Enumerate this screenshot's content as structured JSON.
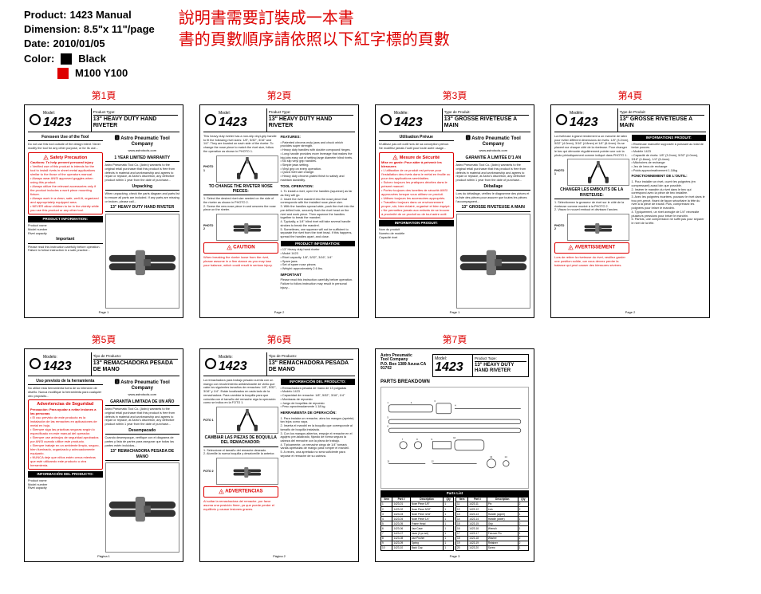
{
  "meta": {
    "product_label": "Product:",
    "product_value": "1423 Manual",
    "dimension_label": "Dimension:",
    "dimension_value": "8.5\"x 11\"/page",
    "date_label": "Date:",
    "date_value": "2010/01/05",
    "color_label": "Color:",
    "color_black": "Black",
    "color_red": "M100  Y100"
  },
  "cn": {
    "line1": "說明書需要訂裝成一本書",
    "line2": "書的頁數順序請依照以下紅字標的頁數"
  },
  "page_labels": [
    "第1頁",
    "第2頁",
    "第3頁",
    "第4頁",
    "第5頁",
    "第6頁",
    "第7頁"
  ],
  "common": {
    "model_label_en": "Model:",
    "model_label_fr": "Modèle:",
    "model_label_es": "Modelo:",
    "model_num": "1423",
    "pt_label_en": "Product Type:",
    "pt_label_fr": "Type de Produit:",
    "pt_label_es": "Tipo de Producto:",
    "ptype_en": "13\" HEAVY DUTY HAND RIVETER",
    "ptype_fr": "13\" GROSSE RIVETEUSE A MAIN",
    "ptype_es": "13\" REMACHADORA PESADA DE MANO",
    "ptype_en2": "13\" HEAVY DUTY\nHAND RIVETER",
    "logo_name": "Astro Pneumatic Tool Company",
    "logo_url": "www.astrotools.com"
  },
  "p1": {
    "foreseen": "Foreseen Use of the Tool",
    "foreseen_body": "Do not use this tool outside of the design intent. Never modify the tool for any other purpose, or for its use...",
    "safety_title": "Safety Precaution",
    "safety_sub": "Cautions: To help prevent personal injury",
    "safety_body": "• Verified use of this product is intends for the tool to install rivets in sheet metal applications similar to the those of the operators manual.\n• Always wear ANSI approved goggles when using this product.\n• Always utilize the relevant accessories only if the product includes a work piece mounting fixture.\n• Always work in a clean, safe, well-lit, organized and appropriately equipped area.\n• NEVER allow children to be in the vicinity while you use this product or any other tool.",
    "info_title": "PRODUCT INFORMATION:",
    "info_body": "Product name\nModel number\nRivet capacity",
    "important": "Important",
    "important_body": "Please read this instruction carefully before operation. Failure to follow instruction in a safe practice...",
    "warranty": "1 YEAR LIMITED WARRANTY",
    "warranty_body": "Astro Pneumatic Tool Co. (Astro) warrants to the original retail purchaser that this product is free from defects in material and workmanship and agrees to repair or replace, at Astro's discretion, any defective product within 1 year from the date of purchase...",
    "unpack": "Unpacking",
    "unpack_body": "When unpacking, check the parts diagram and parts list to ensure all parts are included. If any parts are missing or broken, please call...",
    "riveter_label": "13\" HEAVY DUTY HAND RIVETER",
    "foot": "Page 1"
  },
  "p2": {
    "intro": "This heavy duty riveter has a non-slip vinyl-grip handle to fit the following rivet sizes: 1/8\", 5/32\", 3/16\" and 1/4\". They are located on each side of the riveter. To change the nose piece to match the rivet size, follow the operation as shown in PHOTO 1.",
    "features": "FEATURES:",
    "features_body": "• Patented chrome-moly jaws and chuck which provides super strength.\n• Heavy duty handles with double compound hinges.\n• Long handle provides more leverage that makes the big jobs easy out of setting large diameter blind rivets.\n• No slip vinyl grip handles.\n• Simple jaws setting.\n• Vinyl grip on every operation.\n• Quick rivet size change.\n• Heavy duty chrome-plated finish to satisfy and maintain durability.",
    "tool_op": "TOOL OPERATION:",
    "tool_op_body": "1. To install a rivet, open the handles (squeeze) as far as they will go.\n2. Insert the rivet mandrel into the nose piece that corresponds with the installed nose piece size.\n3. With the handles spread wide, push the rivet into the pre drilled hole, securely flush the rivet head on the rivet and work piece. Then squeeze the handles together to break the mandrel.\n4. Typically, a 1/4\" blind rivet will take several handle strokes to break the mandrel.\n5. Sometimes, one squeeze will not be sufficient to separate the rivet from the rivet head. If this happens, spread the handles apart, and close.",
    "change_title": "TO CHANGE THE RIVETER NOSE PIECES:",
    "change_body": "1. Select the desired rivet size needed on the side of the riveter as shown in PHOTO 2.\n2. Screw the new nose piece in and unscrew the nose piece on the riveter.",
    "caution": "CAUTION",
    "caution_body": "When breaking the riveter loose from the rivet, please assume in a firm stance as you may lose your balance, which could result in serious injury.",
    "info_title": "PRODUCT INFORMATION:",
    "info_body": "• 13\" Heavy duty hand riveter\n• Model 1423\n• Rivet capacity: 1/8\", 5/32\", 3/16\", 1/4\"\n• Spare jaws\n• Set of spare nose pieces\n• Weight: approximately 2.6 lbs.",
    "important": "IMPORTANT",
    "important_body": "Please read this instruction carefully before operation. Failure to follow instruction may result in personal injury...",
    "foot": "Page 2"
  },
  "p3": {
    "util": "Utilisation Prévue",
    "util_body": "N'utilisez pas cet outil hors de sa conception prévue. Ne modifiez jamais l'outil pour toute autre usage...",
    "safety_title": "Mesure de Sécurité",
    "safety_sub": "Mise en garde: Pour aider à prévenir les blessures",
    "safety_body": "• L'utilisation de ce produit est prévue pour l'installation des rivets dans le métal en feuille ou pour des applications semblables.\n• Suivez toujours les pratiques décrites dans le présent manuel.\n• Portez toujours des lunettes de sécurité ANSI approuvées lorsque vous utilisez ce produit.\n• Utilisez toujours les accessoires appropriés.\n• Travaillez toujours dans un environnement propre, sûr, bien éclairé, organisé et bien équipé.\n• Ne permettez jamais aux enfants de se trouver à proximité de ce produit ou de tout autre outil.",
    "info_title": "INFORMATION PRODUIT:",
    "info_body": "Nom du produit\nNuméro de modèle\nCapacité rivet",
    "warranty": "GARANTIE À LIMITÉE D'1 AN",
    "deballage": "Déballage",
    "deballage_body": "Lors du déballage, vérifiez le diagramme des pièces et la liste des pièces pour assurer que toutes les pièces l'accompagnent...",
    "riveter_label": "13\" GROSSE RIVETEUSE A MAIN",
    "foot": "Page 1"
  },
  "p4": {
    "intro": "La riveteuse à grand rendement a un manche de latex pour éviter différent dimensions de rivets: 1/8\" (3.2mm), 5/32\" (4.0mm), 3/16\" (4.8mm) et 1/4\" (6.4mm). Ils se placent sur chaque côté de la riveteuse. Pour changer le bec qui démonte régulièrement pointer une voir la photo périodiquement comme indiqué dans PHOTO 1.",
    "info_title": "INFORMATIONS PRODUIT:",
    "info_body": "• Riveteuse manuelle supposée à puissant au total de treize pouces.\n• Modèle 1423\n• Capacité de rivets: 1/8\" (3.2mm), 5/32\" (4.0mm), 3/16\" (4.8mm), 1/4\" (6.4mm)\n• Mâchoires de rechange\n• Jeu de becs de rechange\n• Poids approximativement 1.18kg",
    "fonc_title": "FONCTIONNEMENT DE L'OUTIL:",
    "fonc_body": "1. Pour installer un rivet, ouvrir les poignées (en compressant) aussi loin que possible.\n2. Insérer le mandrin du rivet dans le bec qui correspond avec la pièce de bec installée.\n3. Avec les poignées écartées, poussez le rivet dans le trou pré-percé, fixant de façon sécuritaire la tête du rivet à la pièce de travail. Puis, compressez les poignées pour briser le mandrin.\n4. Typiquement, un rivet aveugle de 1/4\" nécessite plusieurs pressions pour briser le mandrin.\n5. Parfois, une compression ne suffit pas pour séparer le rivet de la tête.",
    "change_title": "CHANGER LES EMBOUTS DE LA RIVETEUSE:",
    "change_body": "1. Sélectionnez la grosseur de rivet sur le côté de la riveteuse comme montré à la PHOTO 2.\n2. Vissez le nouvel embout et dévissez l'ancien.",
    "avert": "AVERTISSEMENT",
    "avert_body": "Lors de retirer la riveteuse du rivet, veuillez garder une position solide, car vous devrez perdre la balance qui peut causer des blessures sévères.",
    "foot": "Page 2"
  },
  "p5": {
    "uso": "Uso previsto de la herramienta",
    "uso_body": "No utilice esta herramienta fuera de su intención de diseño. Nunca modifique la herramienta para cualquier otro propósito...",
    "safety_title": "Advertencias de Seguridad",
    "safety_sub": "Precaución: Para ayudar a evitar lesiones a las personas",
    "safety_body": "• El uso previsto de este producto es la instalación de las remaches en aplicaciones de metal en hoja.\n• Siempre siga las prácticas seguras según lo especificado en este manual del operador.\n• Siempre use anteojos de seguridad aprobados por ANSI cuando utilice este producto.\n• Siempre trabaje en un ambiente limpio, seguro, bien iluminado, organizado y adecuadamente equipado.\n• NUNCA deje que niños estén cerca mientras que esté utilizando este producto u otra herramienta.",
    "info_title": "INFORMACIÓN DEL PRODUCTO:",
    "warranty": "GARANTÍA LIMITADA DE UN AÑO",
    "desemp": "Desempacado",
    "desemp_body": "Cuando desempaque, verifique con el diagrama de partes y lista de partes para asegurar que todas las partes estén incluidas...",
    "riveter_label": "13\" REMACHADORA PESADA DE MANO",
    "foot": "Página 1"
  },
  "p6": {
    "intro": "La remachadora para trabajo pesado cuenta con un mango con recubrimiento antideslizante de vinilo que cabe los siguientes tamaños de remaches: 1/8\", 5/32\", 3/16\" y 1/4\". Están localizados en cada lado de la remachadora. Para cambiar la boquilla para que coincida con el tamaño del remache siga la operación como se indica en la FOTO 1.",
    "info_title": "INFORMACIÓN DEL PRODUCTO:",
    "info_body": "• Remachadora pesada de mano de 13 pulgadas\n• Modelo 1423\n• Capacidad de remache: 1/8\", 5/32\", 3/16\", 1/4\"\n• Mordazas de repuesto\n• Juego de boquillas de repuesto\n• Peso aproximadamente 1.18 kg",
    "herr_title": "HERRAMIENTA DE OPERACIÓN:",
    "herr_body": "1. Para instalar un remache, abra los mangos (apriete) tan lejos como vaya.\n2. Inserta el mandril en la boquilla que corresponde al tamaño de boquilla instalada.\n3. Con los mangos abiertos, empuje el remache en el agujero pre-taladrado, fijando de forma segura la cabeza del remache con la pieza de trabajo.\n4. Típicamente, un remache ciego de 1/4\" tomará varias apretadas de mango para romper el mandril.\n5. A veces, una apretada no será suficiente para separar el remache de su cabeza.",
    "change_title": "CAMBIAR LAS PIEZAS DE BOQUILLA DEL REMACHADOR:",
    "change_body": "1. Seleccione el tamaño del remache deseado.\n2. Atornille la nueva boquilla y desatornille la anterior.",
    "advert": "ADVERTENCIAS",
    "advert_body": "Al soltar la remachadora del remache, por favor asuma una posición firme, ya que puede perder el equilibrio y causar lesiones graves.",
    "foot": "Página 2"
  },
  "p7": {
    "logo_addr": "Astro Pneumatic\nTool Company\nP.O. Box 1389 Azusa CA 91702",
    "parts_breakdown": "PARTS BREAKDOWN",
    "parts_list": "Parts List",
    "cols": [
      "Item",
      "Part #",
      "Description",
      "Qty"
    ],
    "rows_a": [
      [
        "1",
        "1423-01",
        "Nose Piece 1/8\"",
        "1"
      ],
      [
        "2",
        "1423-02",
        "Nose Piece 5/32\"",
        "1"
      ],
      [
        "3",
        "1423-03",
        "Nose Piece 3/16\"",
        "1"
      ],
      [
        "4",
        "1423-04",
        "Nose Piece 1/4\"",
        "1"
      ],
      [
        "5",
        "1423-05",
        "Frame Head",
        "1"
      ],
      [
        "6",
        "1423-06",
        "Jaw Case",
        "1"
      ],
      [
        "7",
        "1423-07",
        "Jaws (3 pc set)",
        "1"
      ],
      [
        "8",
        "1423-08",
        "Jaw Pusher",
        "1"
      ],
      [
        "9",
        "1423-09",
        "Spring",
        "1"
      ],
      [
        "10",
        "1423-10",
        "Back Cap",
        "1"
      ]
    ],
    "rows_b": [
      [
        "11",
        "1423-11",
        "Pin",
        "2"
      ],
      [
        "12",
        "1423-12",
        "Link",
        "2"
      ],
      [
        "13",
        "1423-13",
        "Handle (upper)",
        "1"
      ],
      [
        "14",
        "1423-14",
        "Handle (lower)",
        "1"
      ],
      [
        "15",
        "1423-15",
        "Grip",
        "2"
      ],
      [
        "16",
        "1423-16",
        "Wrench",
        "1"
      ],
      [
        "17",
        "1423-17",
        "Fulcrum Pin",
        "1"
      ],
      [
        "18",
        "1423-18",
        "Washer",
        "2"
      ],
      [
        "19",
        "1423-19",
        "Retainer",
        "2"
      ],
      [
        "20",
        "1423-20",
        "Screw",
        "1"
      ]
    ],
    "foot": "Page 3"
  }
}
